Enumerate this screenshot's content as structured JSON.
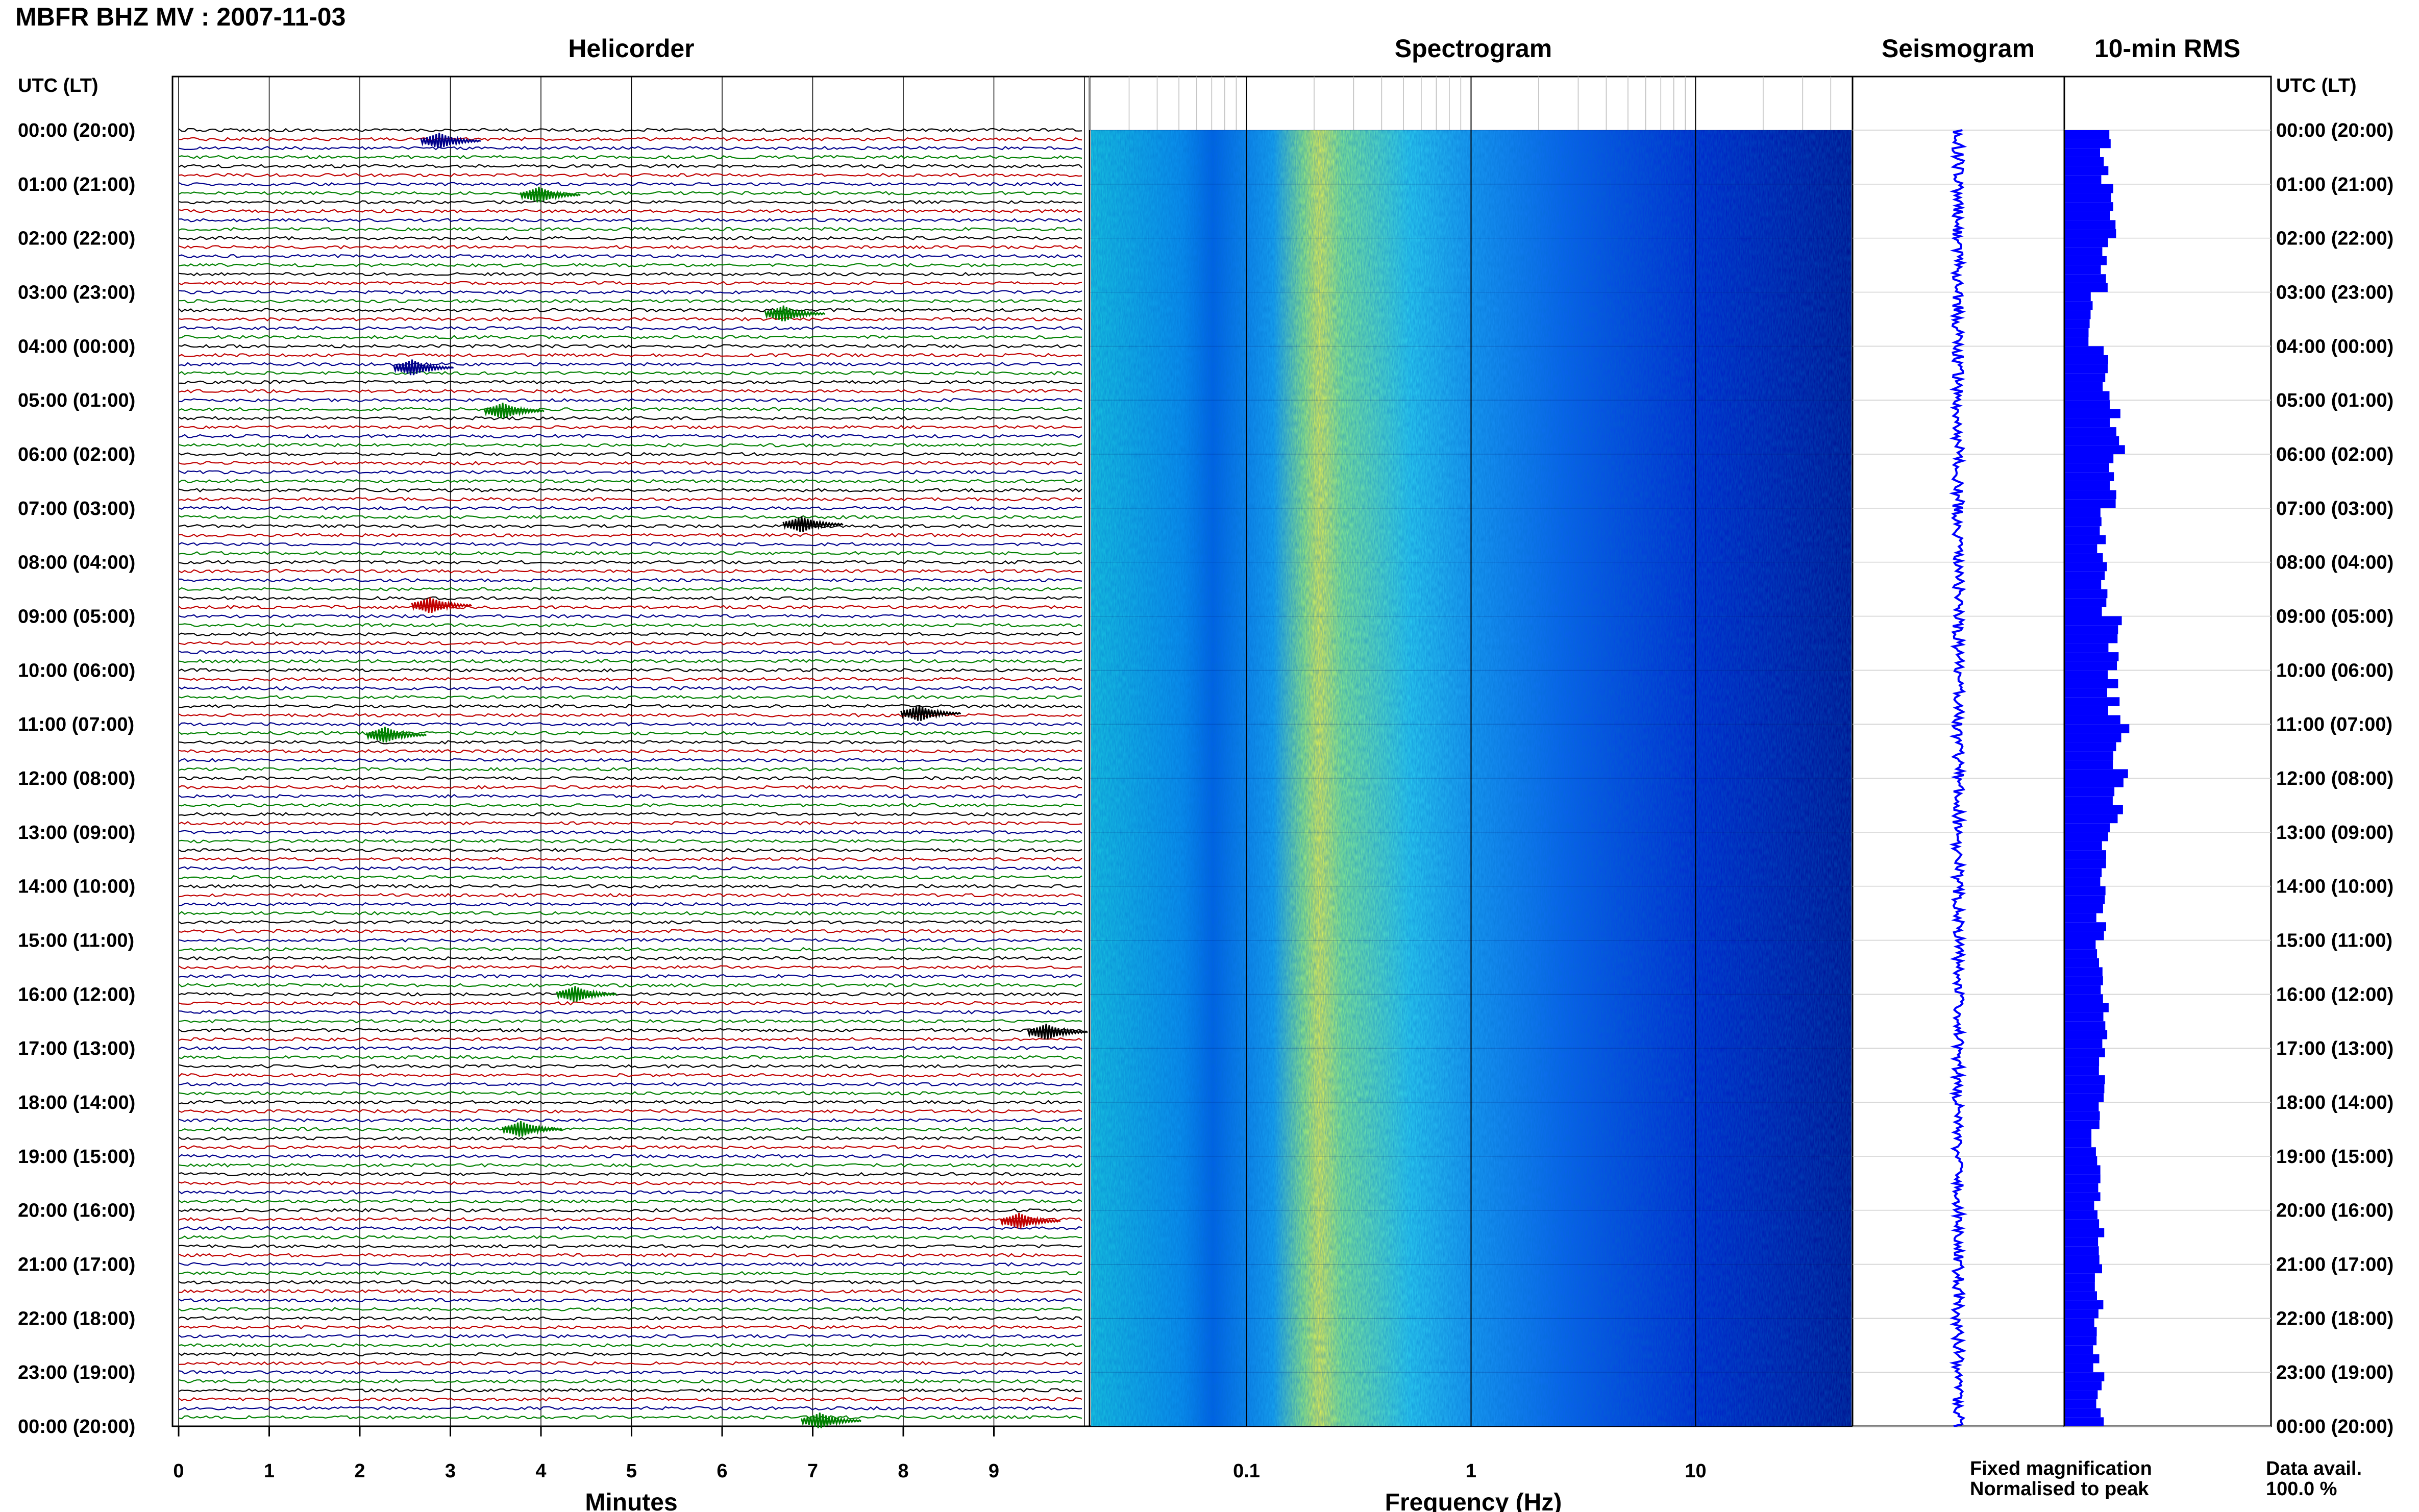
{
  "figure": {
    "title": "MBFR BHZ MV : 2007-11-03",
    "utc_header_left": "UTC (LT)",
    "utc_header_right": "UTC (LT)",
    "data_avail_label": "Data avail.",
    "data_avail_value": "100.0 %"
  },
  "panels": {
    "helicorder": "Helicorder",
    "spectrogram": "Spectrogram",
    "seismogram": "Seismogram",
    "rms": "10-min RMS"
  },
  "legend": {
    "fixed": "Fixed magnification",
    "fixed_color": "#1a1aff",
    "normalised": "Normalised to peak",
    "normalised_color": "#ff1a1a"
  },
  "chart_data": [
    {
      "type": "line",
      "panel": "Helicorder",
      "xlabel": "Minutes",
      "xlim": [
        0,
        10
      ],
      "x_ticks": [
        "0",
        "1",
        "2",
        "3",
        "4",
        "5",
        "6",
        "7",
        "8",
        "9"
      ],
      "rows_per_hour": 6,
      "trace_colors": [
        "#000000",
        "#c00000",
        "#00008b",
        "#008000"
      ],
      "time_labels": [
        "00:00 (20:00)",
        "01:00 (21:00)",
        "02:00 (22:00)",
        "03:00 (23:00)",
        "04:00 (00:00)",
        "05:00 (01:00)",
        "06:00 (02:00)",
        "07:00 (03:00)",
        "08:00 (04:00)",
        "09:00 (05:00)",
        "10:00 (06:00)",
        "11:00 (07:00)",
        "12:00 (08:00)",
        "13:00 (09:00)",
        "14:00 (10:00)",
        "15:00 (11:00)",
        "16:00 (12:00)",
        "17:00 (13:00)",
        "18:00 (14:00)",
        "19:00 (15:00)",
        "20:00 (16:00)",
        "21:00 (17:00)",
        "22:00 (18:00)",
        "23:00 (19:00)",
        "00:00 (20:00)"
      ],
      "events_minutes": [
        {
          "hour": 0.2,
          "minute": 2.9,
          "color": "#00008b"
        },
        {
          "hour": 1.2,
          "minute": 4.0,
          "color": "#008000"
        },
        {
          "hour": 3.4,
          "minute": 6.7,
          "color": "#008000"
        },
        {
          "hour": 4.4,
          "minute": 2.6,
          "color": "#00008b"
        },
        {
          "hour": 5.2,
          "minute": 3.6,
          "color": "#008000"
        },
        {
          "hour": 7.3,
          "minute": 6.9,
          "color": "#000000"
        },
        {
          "hour": 8.8,
          "minute": 2.8,
          "color": "#c00000"
        },
        {
          "hour": 10.8,
          "minute": 8.2,
          "color": "#000000"
        },
        {
          "hour": 11.2,
          "minute": 2.3,
          "color": "#008000"
        },
        {
          "hour": 16.0,
          "minute": 4.4,
          "color": "#008000"
        },
        {
          "hour": 16.7,
          "minute": 9.6,
          "color": "#000000"
        },
        {
          "hour": 18.5,
          "minute": 3.8,
          "color": "#008000"
        },
        {
          "hour": 20.2,
          "minute": 9.3,
          "color": "#c00000"
        },
        {
          "hour": 23.9,
          "minute": 7.1,
          "color": "#008000"
        }
      ]
    },
    {
      "type": "heatmap",
      "panel": "Spectrogram",
      "xlabel": "Frequency (Hz)",
      "x_scale": "log",
      "xlim": [
        0.02,
        50
      ],
      "x_ticks": [
        "0.1",
        "1",
        "10"
      ],
      "peak_frequency_hz": 0.25,
      "colormap": [
        "#00007f",
        "#0000ff",
        "#0080ff",
        "#00ffff",
        "#80ff80",
        "#ffff00"
      ]
    },
    {
      "type": "line",
      "panel": "Seismogram",
      "y_hours": [
        0,
        24
      ]
    },
    {
      "type": "bar",
      "panel": "10-min RMS",
      "orientation": "horizontal",
      "color": "#0000ff",
      "hourly_rms": [
        0.62,
        0.7,
        0.58,
        0.4,
        0.66,
        0.8,
        0.74,
        0.55,
        0.62,
        0.78,
        0.74,
        0.86,
        0.78,
        0.6,
        0.56,
        0.52,
        0.62,
        0.56,
        0.48,
        0.5,
        0.54,
        0.54,
        0.5,
        0.56
      ]
    }
  ]
}
